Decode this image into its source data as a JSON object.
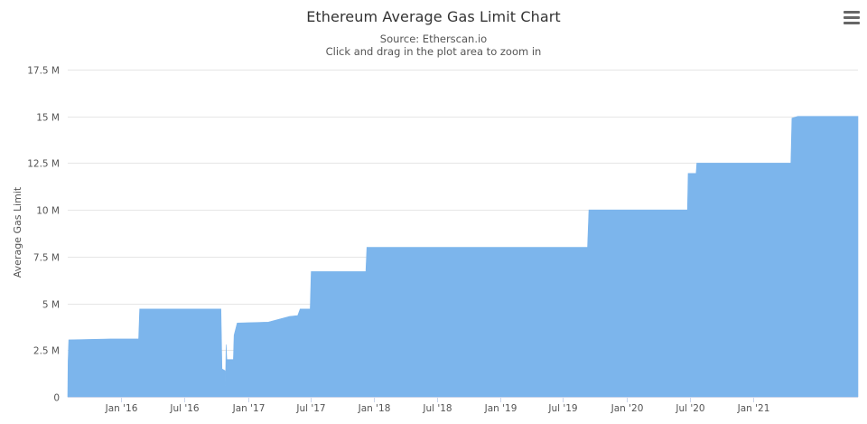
{
  "header": {
    "title": "Ethereum Average Gas Limit Chart",
    "subtitle_source": "Source: Etherscan.io",
    "subtitle_hint": "Click and drag in the plot area to zoom in"
  },
  "menu": {
    "icon": "hamburger-menu-icon"
  },
  "chart_data": {
    "type": "area",
    "title": "Ethereum Average Gas Limit Chart",
    "ylabel": "Average Gas Limit",
    "xlabel": "",
    "ylim": [
      0,
      17500000
    ],
    "xlim": [
      "2015-07-30",
      "2021-10-31"
    ],
    "y_ticks": [
      {
        "value": 0,
        "label": "0"
      },
      {
        "value": 2500000,
        "label": "2.5 M"
      },
      {
        "value": 5000000,
        "label": "5 M"
      },
      {
        "value": 7500000,
        "label": "7.5 M"
      },
      {
        "value": 10000000,
        "label": "10 M"
      },
      {
        "value": 12500000,
        "label": "12.5 M"
      },
      {
        "value": 15000000,
        "label": "15 M"
      },
      {
        "value": 17500000,
        "label": "17.5 M"
      }
    ],
    "x_ticks": [
      {
        "value": "2016-01-01",
        "label": "Jan '16"
      },
      {
        "value": "2016-07-01",
        "label": "Jul '16"
      },
      {
        "value": "2017-01-01",
        "label": "Jan '17"
      },
      {
        "value": "2017-07-01",
        "label": "Jul '17"
      },
      {
        "value": "2018-01-01",
        "label": "Jan '18"
      },
      {
        "value": "2018-07-01",
        "label": "Jul '18"
      },
      {
        "value": "2019-01-01",
        "label": "Jan '19"
      },
      {
        "value": "2019-07-01",
        "label": "Jul '19"
      },
      {
        "value": "2020-01-01",
        "label": "Jan '20"
      },
      {
        "value": "2020-07-01",
        "label": "Jul '20"
      },
      {
        "value": "2021-01-01",
        "label": "Jan '21"
      }
    ],
    "grid": true,
    "legend": "none",
    "series": [
      {
        "color": "#7cb5ec",
        "points": [
          {
            "x": "2015-07-30",
            "y": 0
          },
          {
            "x": "2015-07-31",
            "y": 1900000
          },
          {
            "x": "2015-08-02",
            "y": 3050000
          },
          {
            "x": "2015-12-01",
            "y": 3100000
          },
          {
            "x": "2016-02-20",
            "y": 3100000
          },
          {
            "x": "2016-02-23",
            "y": 4700000
          },
          {
            "x": "2016-10-15",
            "y": 4700000
          },
          {
            "x": "2016-10-18",
            "y": 1500000
          },
          {
            "x": "2016-10-27",
            "y": 1400000
          },
          {
            "x": "2016-10-28",
            "y": 500000
          },
          {
            "x": "2016-10-30",
            "y": 2800000
          },
          {
            "x": "2016-11-01",
            "y": 2000000
          },
          {
            "x": "2016-11-20",
            "y": 2000000
          },
          {
            "x": "2016-11-22",
            "y": 3300000
          },
          {
            "x": "2016-12-01",
            "y": 3950000
          },
          {
            "x": "2017-03-01",
            "y": 4000000
          },
          {
            "x": "2017-05-01",
            "y": 4300000
          },
          {
            "x": "2017-05-25",
            "y": 4350000
          },
          {
            "x": "2017-06-01",
            "y": 4700000
          },
          {
            "x": "2017-06-30",
            "y": 4700000
          },
          {
            "x": "2017-07-03",
            "y": 6700000
          },
          {
            "x": "2017-12-08",
            "y": 6700000
          },
          {
            "x": "2017-12-11",
            "y": 8000000
          },
          {
            "x": "2019-09-10",
            "y": 8000000
          },
          {
            "x": "2019-09-14",
            "y": 10000000
          },
          {
            "x": "2020-06-25",
            "y": 10000000
          },
          {
            "x": "2020-06-27",
            "y": 11950000
          },
          {
            "x": "2020-07-20",
            "y": 11950000
          },
          {
            "x": "2020-07-22",
            "y": 12500000
          },
          {
            "x": "2021-04-20",
            "y": 12500000
          },
          {
            "x": "2021-04-23",
            "y": 14900000
          },
          {
            "x": "2021-05-10",
            "y": 15000000
          },
          {
            "x": "2021-10-31",
            "y": 15000000
          },
          {
            "x": "2021-10-31",
            "y": 0
          }
        ]
      }
    ]
  }
}
